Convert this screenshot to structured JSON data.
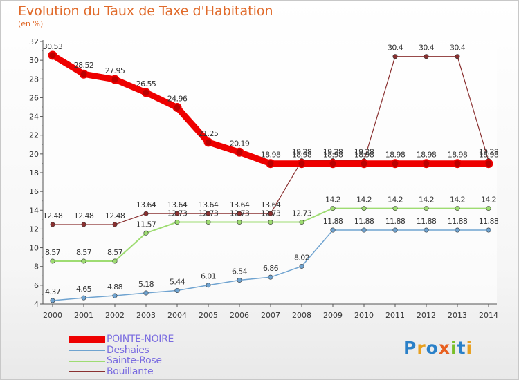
{
  "chart_data": {
    "type": "line",
    "title": "Evolution du Taux de Taxe d'Habitation",
    "subtitle": "(en %)",
    "xlabel": "",
    "ylabel": "",
    "ylim": [
      4,
      32
    ],
    "y_ticks": [
      "4",
      "6",
      "8",
      "10",
      "12",
      "14",
      "16",
      "18",
      "20",
      "22",
      "24",
      "26",
      "28",
      "30",
      "32"
    ],
    "categories": [
      "2000",
      "2001",
      "2002",
      "2003",
      "2004",
      "2005",
      "2006",
      "2007",
      "2008",
      "2009",
      "2010",
      "2011",
      "2012",
      "2013",
      "2014"
    ],
    "series": [
      {
        "name": "POINTE-NOIRE",
        "color": "#ee0000",
        "width": 9,
        "values": [
          30.53,
          28.52,
          27.95,
          26.55,
          24.96,
          21.25,
          20.19,
          18.98,
          18.98,
          18.98,
          18.98,
          18.98,
          18.98,
          18.98,
          18.98
        ],
        "labels": [
          "30.53",
          "28.52",
          "27.95",
          "26.55",
          "24.96",
          "21.25",
          "20.19",
          "18.98",
          "18.98",
          "18.98",
          "18.98",
          "18.98",
          "18.98",
          "18.98",
          "18.98"
        ]
      },
      {
        "name": "Deshaies",
        "color": "#6fa3d0",
        "width": 1.5,
        "values": [
          4.37,
          4.65,
          4.88,
          5.18,
          5.44,
          6.01,
          6.54,
          6.86,
          8.02,
          11.88,
          11.88,
          11.88,
          11.88,
          11.88,
          11.88
        ],
        "labels": [
          "4.37",
          "4.65",
          "4.88",
          "5.18",
          "5.44",
          "6.01",
          "6.54",
          "6.86",
          "8.02",
          "11.88",
          "11.88",
          "11.88",
          "11.88",
          "11.88",
          "11.88"
        ]
      },
      {
        "name": "Sainte-Rose",
        "color": "#9edc72",
        "width": 2,
        "values": [
          8.57,
          8.57,
          8.57,
          11.57,
          12.73,
          12.73,
          12.73,
          12.73,
          12.73,
          14.2,
          14.2,
          14.2,
          14.2,
          14.2,
          14.2
        ],
        "labels": [
          "8.57",
          "8.57",
          "8.57",
          "11.57",
          "12.73",
          "12.73",
          "12.73",
          "12.73",
          "12.73",
          "14.2",
          "14.2",
          "14.2",
          "14.2",
          "14.2",
          "14.2"
        ]
      },
      {
        "name": "Bouillante",
        "color": "#8a3030",
        "width": 1.2,
        "values": [
          12.48,
          12.48,
          12.48,
          13.64,
          13.64,
          13.64,
          13.64,
          13.64,
          19.28,
          19.28,
          19.28,
          30.4,
          30.4,
          30.4,
          19.28
        ],
        "labels": [
          "12.48",
          "12.48",
          "12.48",
          "13.64",
          "13.64",
          "13.64",
          "13.64",
          "13.64",
          "19.28",
          "19.28",
          "19.28",
          "30.4",
          "30.4",
          "30.4",
          "19.28"
        ]
      }
    ]
  },
  "logo": {
    "p": "P",
    "r": "r",
    "o": "o",
    "x": "x",
    "i1": "i",
    "t": "t",
    "i2": "i"
  }
}
